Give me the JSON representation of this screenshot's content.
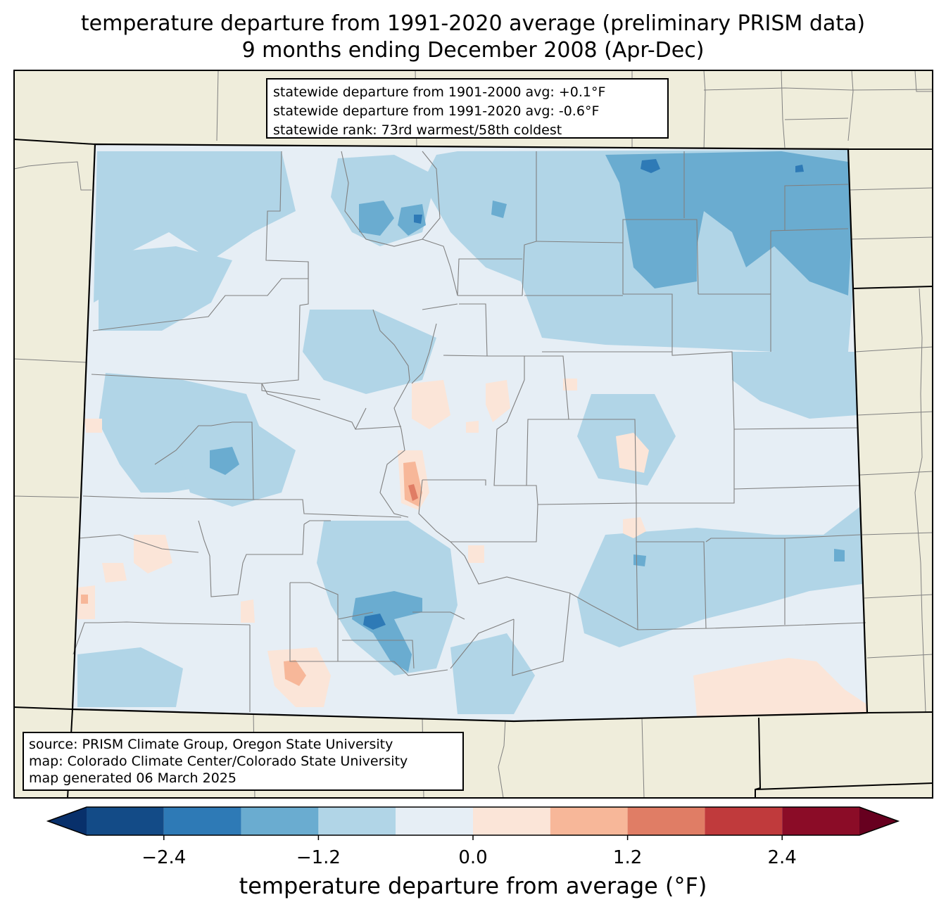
{
  "title": {
    "line1": "temperature departure from 1991-2020 average (preliminary PRISM data)",
    "line2": "9 months ending December 2008 (Apr-Dec)"
  },
  "stats": {
    "line1": "statewide departure from 1901-2000 avg: +0.1°F",
    "line2": "statewide departure from 1991-2020 avg: -0.6°F",
    "line3": "statewide rank: 73rd warmest/58th coldest"
  },
  "source": {
    "line1": "source: PRISM Climate Group, Oregon State University",
    "line2": "map: Colorado Climate Center/Colorado State University",
    "line3": "map generated 06 March 2025"
  },
  "colorbar": {
    "label": "temperature departure from average (°F)",
    "ticks": [
      "−2.4",
      "−1.2",
      "0.0",
      "1.2",
      "2.4"
    ],
    "bins": [
      {
        "from": -3.0,
        "to": -2.4,
        "color": "#134b87"
      },
      {
        "from": -2.4,
        "to": -1.8,
        "color": "#2e7ab6"
      },
      {
        "from": -1.8,
        "to": -1.2,
        "color": "#6aacd0"
      },
      {
        "from": -1.2,
        "to": -0.6,
        "color": "#b1d5e7"
      },
      {
        "from": -0.6,
        "to": 0.0,
        "color": "#e6eef5"
      },
      {
        "from": 0.0,
        "to": 0.6,
        "color": "#fbe5d8"
      },
      {
        "from": 0.6,
        "to": 1.2,
        "color": "#f7b799"
      },
      {
        "from": 1.2,
        "to": 1.8,
        "color": "#e07d65"
      },
      {
        "from": 1.8,
        "to": 2.4,
        "color": "#c03a3c"
      },
      {
        "from": 2.4,
        "to": 3.0,
        "color": "#8b0c27"
      }
    ],
    "under_color": "#08306b",
    "over_color": "#67001f"
  },
  "colors": {
    "neighbor_land": "#efeddb",
    "state_base": "#e6eef5",
    "county_lines": "#808080"
  }
}
